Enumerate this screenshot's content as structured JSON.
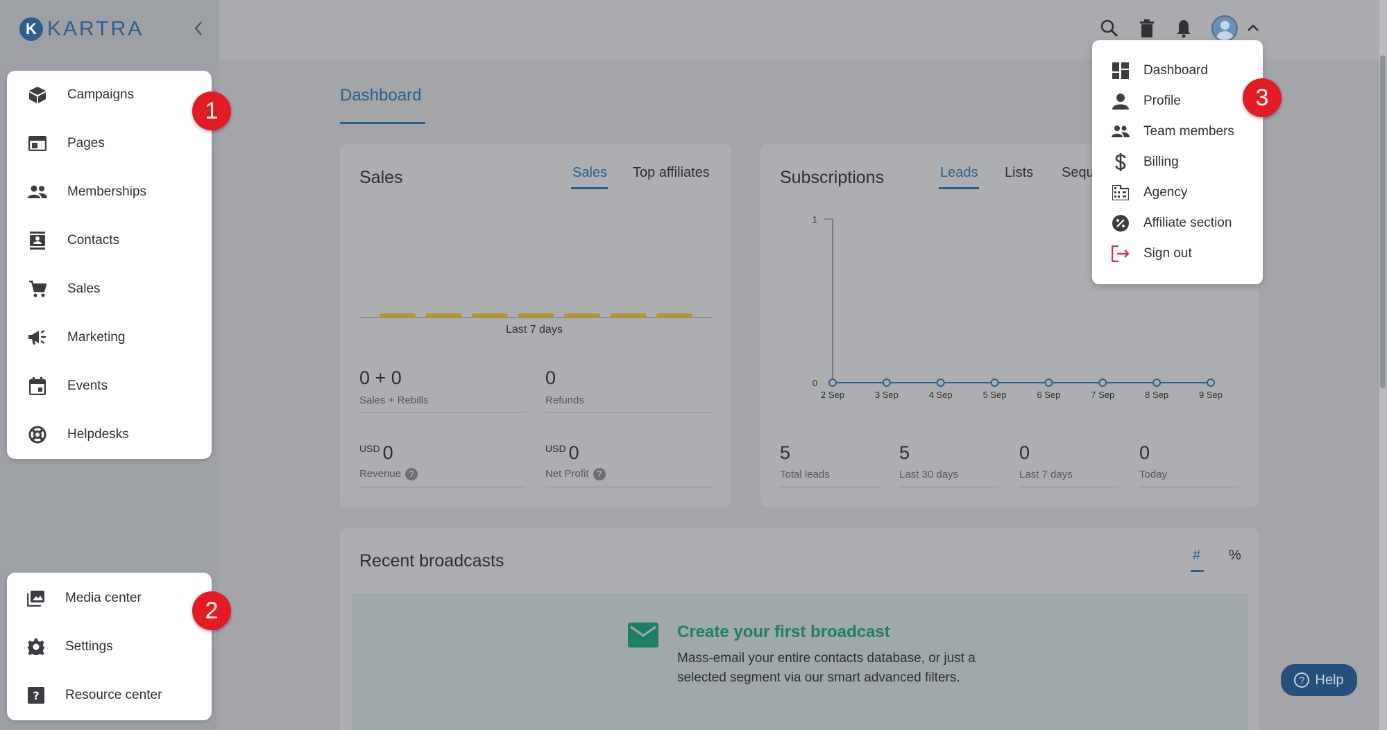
{
  "app": {
    "logo_letter": "K",
    "logo_text": "KARTRA"
  },
  "sidebar": {
    "primary_items": [
      {
        "label": "Campaigns",
        "icon": "campaigns-icon"
      },
      {
        "label": "Pages",
        "icon": "pages-icon"
      },
      {
        "label": "Memberships",
        "icon": "memberships-icon"
      },
      {
        "label": "Contacts",
        "icon": "contacts-icon"
      },
      {
        "label": "Sales",
        "icon": "cart-icon"
      },
      {
        "label": "Marketing",
        "icon": "megaphone-icon"
      },
      {
        "label": "Events",
        "icon": "calendar-icon"
      },
      {
        "label": "Helpdesks",
        "icon": "lifebuoy-icon"
      }
    ],
    "secondary_items": [
      {
        "label": "Media center",
        "icon": "media-icon"
      },
      {
        "label": "Settings",
        "icon": "gear-icon"
      },
      {
        "label": "Resource center",
        "icon": "question-icon"
      }
    ]
  },
  "badges": {
    "one": "1",
    "two": "2",
    "three": "3"
  },
  "user_menu": {
    "items": [
      {
        "label": "Dashboard",
        "icon": "dashboard-icon"
      },
      {
        "label": "Profile",
        "icon": "person-icon"
      },
      {
        "label": "Team members",
        "icon": "team-icon"
      },
      {
        "label": "Billing",
        "icon": "dollar-icon"
      },
      {
        "label": "Agency",
        "icon": "building-icon"
      },
      {
        "label": "Affiliate section",
        "icon": "percent-icon"
      },
      {
        "label": "Sign out",
        "icon": "sign-out-icon"
      }
    ]
  },
  "page": {
    "tab": "Dashboard"
  },
  "sales_card": {
    "title": "Sales",
    "tabs": [
      "Sales",
      "Top affiliates"
    ],
    "chart_caption": "Last 7 days",
    "sales_value": "0 + 0",
    "sales_label": "Sales + Rebills",
    "refunds_value": "0",
    "refunds_label": "Refunds",
    "currency": "USD",
    "revenue_value": "0",
    "revenue_label": "Revenue",
    "net_profit_value": "0",
    "net_profit_label": "Net Profit",
    "help_mark": "?"
  },
  "subscriptions_card": {
    "title": "Subscriptions",
    "tabs": [
      "Leads",
      "Lists",
      "Sequ"
    ],
    "stats": [
      {
        "value": "5",
        "label": "Total leads"
      },
      {
        "value": "5",
        "label": "Last 30 days"
      },
      {
        "value": "0",
        "label": "Last 7 days"
      },
      {
        "value": "0",
        "label": "Today"
      }
    ]
  },
  "broadcasts_card": {
    "title": "Recent broadcasts",
    "tabs": [
      "#",
      "%"
    ],
    "empty_title": "Create your first broadcast",
    "empty_text": "Mass-email your entire contacts database, or just a selected segment via our smart advanced filters."
  },
  "help_button": {
    "label": "Help",
    "mark": "?"
  },
  "colors": {
    "accent": "#2d5e8c",
    "badge": "#e31b23",
    "bar": "#b8952a",
    "signout": "#d62c4e"
  },
  "chart_data": [
    {
      "type": "bar",
      "categories": [
        "",
        "",
        "",
        "",
        "",
        "",
        ""
      ],
      "values": [
        0,
        0,
        0,
        0,
        0,
        0,
        0
      ],
      "title": "",
      "xlabel": "Last 7 days",
      "ylabel": ""
    },
    {
      "type": "line",
      "x": [
        "2 Sep",
        "3 Sep",
        "4 Sep",
        "5 Sep",
        "6 Sep",
        "7 Sep",
        "8 Sep",
        "9 Sep"
      ],
      "series": [
        {
          "values": [
            0,
            0,
            0,
            0,
            0,
            0,
            0,
            0
          ]
        }
      ],
      "yticks": [
        "0",
        "1"
      ],
      "ylim": [
        0,
        1
      ]
    }
  ]
}
